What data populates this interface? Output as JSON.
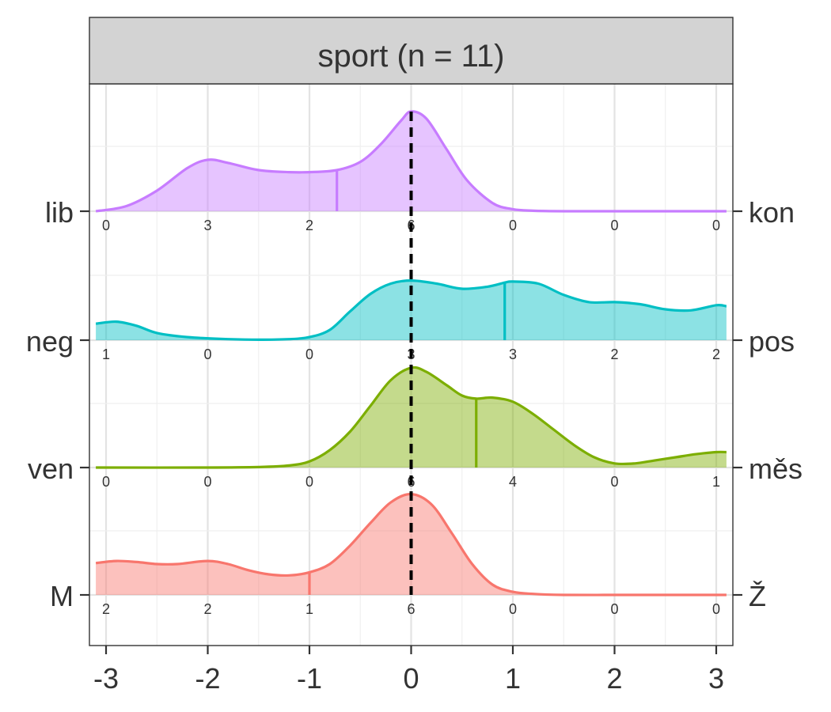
{
  "chart_data": {
    "type": "area",
    "title": "sport (n = 11)",
    "xlabel": "",
    "ylabel": "",
    "xlim": [
      -3.1,
      3.1
    ],
    "x_ticks": [
      "-3",
      "-2",
      "-1",
      "0",
      "1",
      "2",
      "3"
    ],
    "x_tick_values": [
      -3,
      -2,
      -1,
      0,
      1,
      2,
      3
    ],
    "bin_positions": [
      -3,
      -2,
      -1,
      0,
      1,
      2,
      3
    ],
    "reference_line_x": 0,
    "grid": true,
    "series": [
      {
        "name": "lib – kon",
        "left_label": "lib",
        "right_label": "kon",
        "color": "#C77CFF",
        "mean": -0.73,
        "counts": [
          "0",
          "3",
          "2",
          "6",
          "0",
          "0",
          "0"
        ],
        "density": {
          "x": [
            -3.1,
            -2.8,
            -2.5,
            -2.2,
            -2.0,
            -1.8,
            -1.5,
            -1.2,
            -1.0,
            -0.73,
            -0.5,
            -0.3,
            -0.1,
            0.0,
            0.15,
            0.35,
            0.55,
            0.8,
            1.0,
            1.2,
            1.5,
            2.0,
            2.5,
            3.1
          ],
          "y": [
            0.0,
            0.05,
            0.2,
            0.42,
            0.5,
            0.47,
            0.4,
            0.38,
            0.38,
            0.4,
            0.48,
            0.65,
            0.88,
            0.97,
            0.9,
            0.6,
            0.3,
            0.08,
            0.02,
            0.005,
            0.0,
            0.0,
            0.0,
            0.0
          ]
        }
      },
      {
        "name": "neg – pos",
        "left_label": "neg",
        "right_label": "pos",
        "color": "#00BFC4",
        "mean": 0.92,
        "counts": [
          "1",
          "0",
          "0",
          "3",
          "3",
          "2",
          "2"
        ],
        "density": {
          "x": [
            -3.1,
            -2.9,
            -2.7,
            -2.5,
            -2.2,
            -1.8,
            -1.5,
            -1.2,
            -1.0,
            -0.8,
            -0.6,
            -0.4,
            -0.2,
            0.0,
            0.25,
            0.5,
            0.75,
            0.92,
            1.0,
            1.25,
            1.5,
            1.75,
            2.0,
            2.25,
            2.5,
            2.75,
            3.0,
            3.1
          ],
          "y": [
            0.16,
            0.18,
            0.14,
            0.07,
            0.03,
            0.01,
            0.005,
            0.01,
            0.03,
            0.1,
            0.28,
            0.45,
            0.55,
            0.58,
            0.55,
            0.5,
            0.52,
            0.56,
            0.57,
            0.55,
            0.44,
            0.37,
            0.37,
            0.35,
            0.3,
            0.29,
            0.34,
            0.33
          ]
        }
      },
      {
        "name": "ven – měs",
        "left_label": "ven",
        "right_label": "měs",
        "color": "#7CAE00",
        "mean": 0.64,
        "counts": [
          "0",
          "0",
          "0",
          "6",
          "4",
          "0",
          "1"
        ],
        "density": {
          "x": [
            -3.1,
            -2.0,
            -1.5,
            -1.2,
            -1.0,
            -0.8,
            -0.6,
            -0.4,
            -0.2,
            0.0,
            0.15,
            0.35,
            0.5,
            0.64,
            0.8,
            1.0,
            1.2,
            1.4,
            1.6,
            1.8,
            2.0,
            2.2,
            2.4,
            2.6,
            2.8,
            3.0,
            3.1
          ],
          "y": [
            0.0,
            0.0,
            0.005,
            0.02,
            0.06,
            0.17,
            0.35,
            0.6,
            0.85,
            0.97,
            0.93,
            0.8,
            0.7,
            0.67,
            0.68,
            0.64,
            0.52,
            0.37,
            0.22,
            0.1,
            0.04,
            0.04,
            0.07,
            0.1,
            0.13,
            0.15,
            0.15
          ]
        }
      },
      {
        "name": "M – Ž",
        "left_label": "M",
        "right_label": "Ž",
        "color": "#F8766D",
        "mean": -1.0,
        "counts": [
          "2",
          "2",
          "1",
          "6",
          "0",
          "0",
          "0"
        ],
        "density": {
          "x": [
            -3.1,
            -2.9,
            -2.7,
            -2.5,
            -2.3,
            -2.0,
            -1.8,
            -1.6,
            -1.4,
            -1.2,
            -1.0,
            -0.8,
            -0.6,
            -0.4,
            -0.2,
            0.0,
            0.2,
            0.4,
            0.6,
            0.8,
            1.0,
            1.2,
            1.5,
            2.0,
            2.5,
            3.1
          ],
          "y": [
            0.31,
            0.33,
            0.32,
            0.3,
            0.3,
            0.33,
            0.3,
            0.24,
            0.2,
            0.19,
            0.22,
            0.3,
            0.48,
            0.7,
            0.9,
            0.98,
            0.88,
            0.6,
            0.3,
            0.1,
            0.03,
            0.01,
            0.0,
            0.0,
            0.0,
            0.0
          ]
        }
      }
    ]
  }
}
